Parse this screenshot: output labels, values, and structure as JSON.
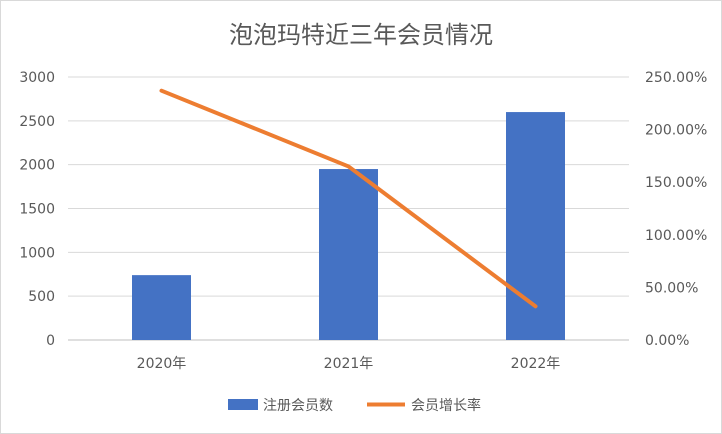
{
  "chart_data": {
    "type": "bar",
    "title": "泡泡玛特近三年会员情况",
    "categories": [
      "2020年",
      "2021年",
      "2022年"
    ],
    "series": [
      {
        "name": "注册会员数",
        "type": "bar",
        "axis": "left",
        "values": [
          740,
          1950,
          2600
        ],
        "color": "#4472C4"
      },
      {
        "name": "会员增长率",
        "type": "line",
        "axis": "right",
        "values": [
          237,
          165,
          32
        ],
        "color": "#ED7D31"
      }
    ],
    "y_left": {
      "ylim": [
        0,
        3000
      ],
      "ticks": [
        "0",
        "500",
        "1000",
        "1500",
        "2000",
        "2500",
        "3000"
      ],
      "tick_values": [
        0,
        500,
        1000,
        1500,
        2000,
        2500,
        3000
      ]
    },
    "y_right": {
      "ylim": [
        0,
        250
      ],
      "ticks": [
        "0.00%",
        "50.00%",
        "100.00%",
        "150.00%",
        "200.00%",
        "250.00%"
      ],
      "tick_values": [
        0,
        50,
        100,
        150,
        200,
        250
      ]
    },
    "grid": true,
    "legend": "bottom"
  }
}
